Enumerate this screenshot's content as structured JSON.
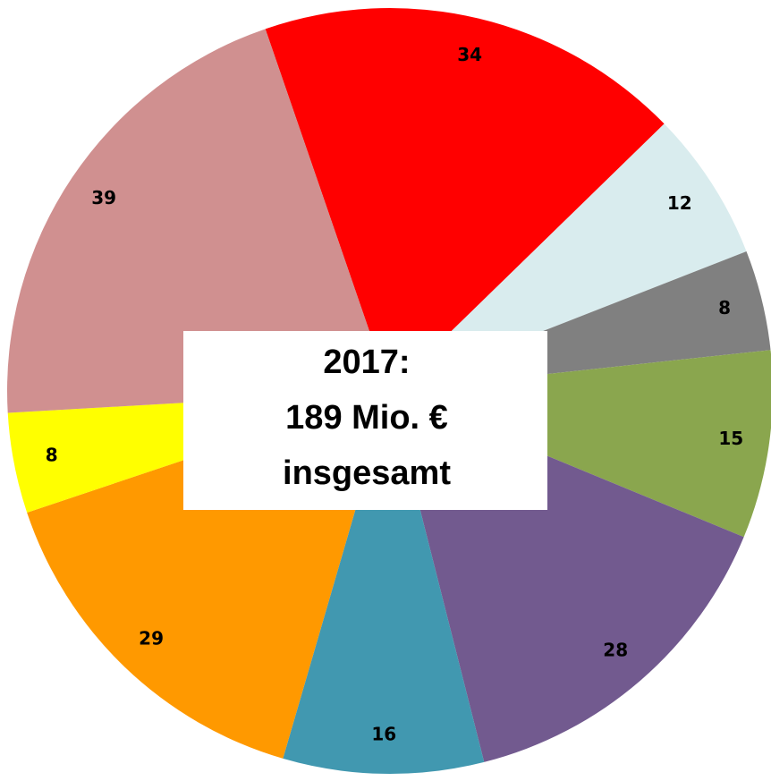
{
  "chart_data": {
    "type": "pie",
    "values": [
      34,
      12,
      8,
      15,
      28,
      16,
      29,
      8,
      39
    ],
    "colors": [
      "#ff0000",
      "#d9ecee",
      "#808080",
      "#8aa64e",
      "#725a8f",
      "#4198b0",
      "#ff9900",
      "#ffff00",
      "#d09090"
    ],
    "annotations": [
      "2017:",
      "189 Mio. €",
      "insgesamt"
    ]
  }
}
